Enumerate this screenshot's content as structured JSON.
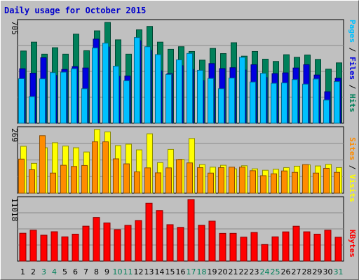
{
  "title": "Daily usage for October 2015",
  "colors": {
    "hits": "#00805a",
    "files": "#0000e0",
    "pages": "#00c0ff",
    "visits": "#ffff00",
    "sites": "#ff8c00",
    "kbytes": "#ff0000",
    "weekend": "#00805a",
    "weekday": "#000000"
  },
  "chart_data": [
    {
      "type": "bar",
      "name": "hits-files-pages",
      "ymax_label": "705",
      "ylim": [
        0,
        705
      ],
      "series": [
        {
          "name": "Hits",
          "values": [
            505,
            567,
            483,
            528,
            483,
            623,
            507,
            646,
            705,
            583,
            483,
            653,
            677,
            567,
            517,
            535,
            502,
            441,
            523,
            487,
            563,
            469,
            502,
            448,
            432,
            479,
            461,
            477,
            446,
            378,
            422
          ]
        },
        {
          "name": "Files",
          "values": [
            381,
            350,
            458,
            334,
            376,
            396,
            386,
            588,
            533,
            328,
            330,
            577,
            509,
            366,
            346,
            402,
            376,
            298,
            417,
            382,
            388,
            372,
            409,
            319,
            347,
            352,
            386,
            409,
            337,
            220,
            315
          ]
        },
        {
          "name": "Pages",
          "values": [
            311,
            186,
            310,
            354,
            357,
            381,
            241,
            526,
            560,
            399,
            297,
            599,
            535,
            480,
            341,
            443,
            488,
            370,
            313,
            241,
            316,
            461,
            288,
            349,
            279,
            282,
            305,
            273,
            309,
            162,
            291
          ]
        }
      ]
    },
    {
      "type": "bar",
      "name": "visits-sites",
      "ymax_label": "269",
      "ylim": [
        0,
        269
      ],
      "series": [
        {
          "name": "Visits",
          "values": [
            198,
            126,
            192,
            213,
            199,
            192,
            174,
            269,
            259,
            201,
            207,
            183,
            251,
            129,
            185,
            143,
            231,
            121,
            110,
            118,
            103,
            116,
            103,
            97,
            101,
            108,
            114,
            120,
            115,
            122,
            108
          ]
        },
        {
          "name": "Sites",
          "values": [
            144,
            99,
            243,
            85,
            118,
            113,
            117,
            217,
            217,
            145,
            124,
            90,
            107,
            86,
            107,
            142,
            128,
            108,
            85,
            108,
            110,
            110,
            95,
            74,
            82,
            94,
            88,
            121,
            85,
            105,
            88
          ]
        }
      ]
    },
    {
      "type": "bar",
      "name": "kbytes",
      "ymax_label": "11018",
      "ylim": [
        0,
        11018
      ],
      "series": [
        {
          "name": "KBytes",
          "values": [
            4986,
            5527,
            4635,
            5256,
            4342,
            4824,
            6246,
            7807,
            6833,
            5628,
            6405,
            7265,
            10356,
            9049,
            6518,
            6035,
            11018,
            6418,
            7147,
            4962,
            4968,
            4283,
            5127,
            2967,
            4342,
            5231,
            6237,
            5244,
            4825,
            5527,
            4270
          ]
        }
      ]
    }
  ],
  "days": [
    "1",
    "2",
    "3",
    "4",
    "5",
    "6",
    "7",
    "8",
    "9",
    "10",
    "11",
    "12",
    "13",
    "14",
    "15",
    "16",
    "17",
    "18",
    "19",
    "20",
    "21",
    "22",
    "23",
    "24",
    "25",
    "26",
    "27",
    "28",
    "29",
    "30",
    "31"
  ],
  "weekend_days": [
    3,
    4,
    10,
    11,
    17,
    18,
    24,
    25,
    31
  ],
  "legend": {
    "right1": [
      {
        "text": "Pages",
        "key": "pages"
      },
      {
        "text": " / ",
        "key": "weekday"
      },
      {
        "text": "Files",
        "key": "files"
      },
      {
        "text": " / ",
        "key": "weekday"
      },
      {
        "text": "Hits",
        "key": "hits"
      }
    ],
    "right2": [
      {
        "text": "Sites",
        "key": "sites"
      },
      {
        "text": " / ",
        "key": "weekday"
      },
      {
        "text": "Visits",
        "key": "visits"
      }
    ],
    "right3": [
      {
        "text": "KBytes",
        "key": "kbytes"
      }
    ]
  }
}
